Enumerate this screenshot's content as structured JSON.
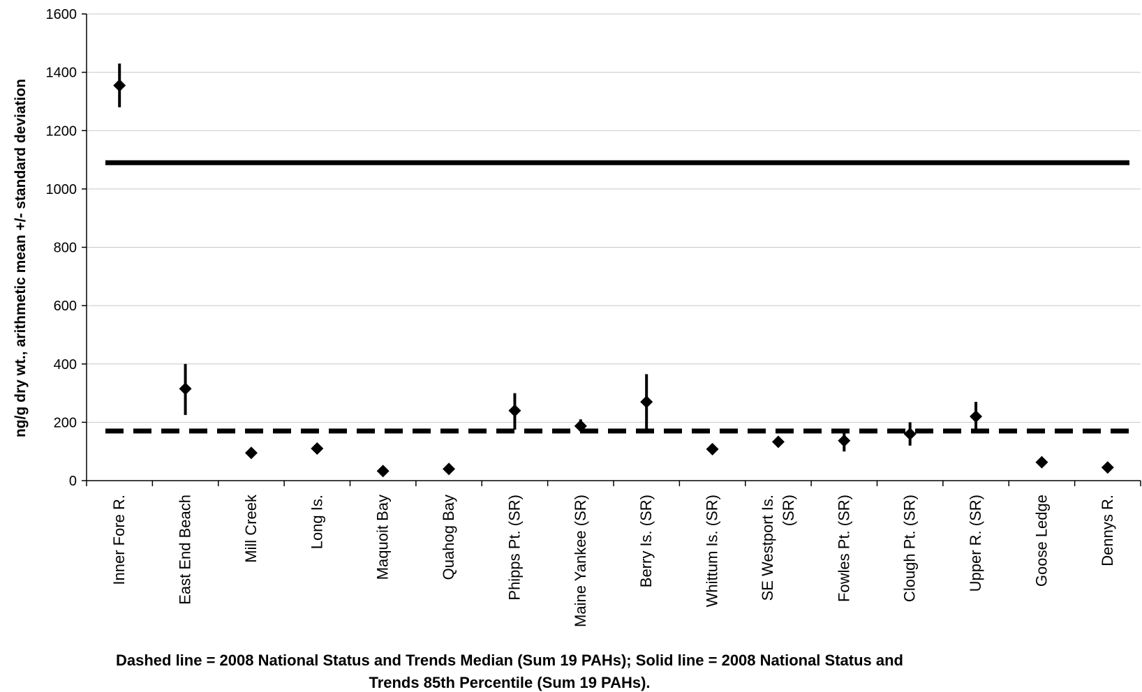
{
  "chart_data": {
    "type": "scatter",
    "ylabel": "ng/g dry wt., arithmetic mean +/- standard deviation",
    "ylim": [
      0,
      1600
    ],
    "yticks": [
      0,
      200,
      400,
      600,
      800,
      1000,
      1200,
      1400,
      1600
    ],
    "grid": true,
    "categories": [
      "Inner Fore R.",
      "East End Beach",
      "Mill Creek",
      "Long Is.",
      "Maquoit Bay",
      "Quahog Bay",
      "Phipps Pt. (SR)",
      "Maine Yankee (SR)",
      "Berry Is. (SR)",
      "Whittum Is. (SR)",
      "SE Westport Is. (SR)",
      "Fowles Pt. (SR)",
      "Clough Pt. (SR)",
      "Upper R. (SR)",
      "Goose Ledge",
      "Dennys R."
    ],
    "series": [
      {
        "values": [
          1355,
          315,
          95,
          110,
          33,
          40,
          240,
          187,
          270,
          108,
          133,
          137,
          160,
          220,
          63,
          45
        ],
        "error_low": [
          1280,
          225,
          null,
          null,
          null,
          null,
          175,
          170,
          175,
          null,
          120,
          100,
          120,
          170,
          null,
          null
        ],
        "error_high": [
          1430,
          400,
          null,
          null,
          null,
          null,
          300,
          210,
          365,
          null,
          150,
          175,
          200,
          270,
          null,
          null
        ]
      }
    ],
    "reference_lines": [
      {
        "value": 1090,
        "style": "solid"
      },
      {
        "value": 170,
        "style": "dashed"
      }
    ],
    "caption_line1": "Dashed line = 2008 National Status and Trends Median (Sum 19 PAHs); Solid line = 2008 National Status and",
    "caption_line2": "Trends 85th Percentile (Sum 19 PAHs)."
  }
}
